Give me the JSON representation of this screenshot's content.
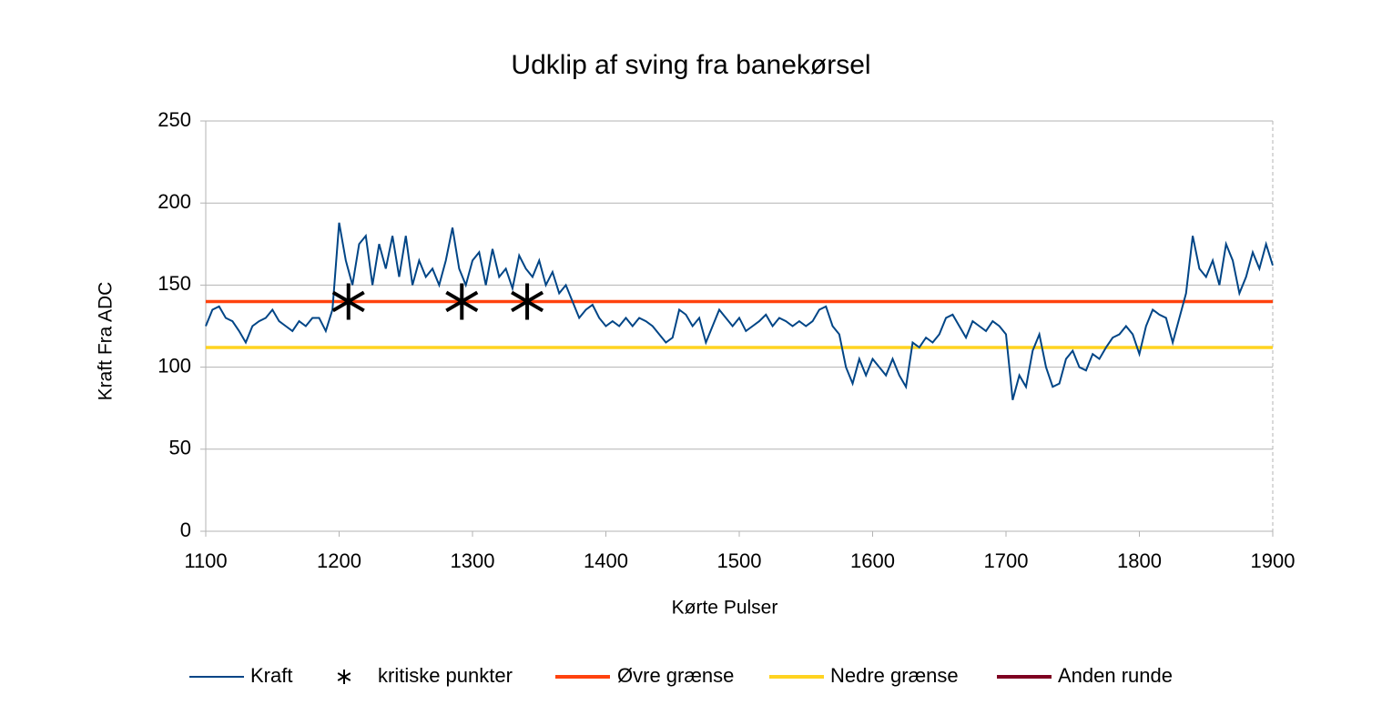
{
  "chart_data": {
    "type": "line",
    "title": "Udklip af sving fra banekørsel",
    "x_label": "Kørte Pulser",
    "y_label": "Kraft Fra ADC",
    "xlim": [
      1100,
      1900
    ],
    "xticks": [
      1100,
      1200,
      1300,
      1400,
      1500,
      1600,
      1700,
      1800,
      1900
    ],
    "ylim": [
      0,
      250
    ],
    "yticks": [
      0,
      50,
      100,
      150,
      200,
      250
    ],
    "grid": true,
    "legend": "bottom",
    "series": [
      {
        "name": "Kraft",
        "type": "line",
        "color": "#004586",
        "x": [
          1100,
          1105,
          1110,
          1115,
          1120,
          1125,
          1130,
          1135,
          1140,
          1145,
          1150,
          1155,
          1160,
          1165,
          1170,
          1175,
          1180,
          1185,
          1190,
          1195,
          1200,
          1205,
          1210,
          1215,
          1220,
          1225,
          1230,
          1235,
          1240,
          1245,
          1250,
          1255,
          1260,
          1265,
          1270,
          1275,
          1280,
          1285,
          1290,
          1295,
          1300,
          1305,
          1310,
          1315,
          1320,
          1325,
          1330,
          1335,
          1340,
          1345,
          1350,
          1355,
          1360,
          1365,
          1370,
          1375,
          1380,
          1385,
          1390,
          1395,
          1400,
          1405,
          1410,
          1415,
          1420,
          1425,
          1430,
          1435,
          1440,
          1445,
          1450,
          1455,
          1460,
          1465,
          1470,
          1475,
          1480,
          1485,
          1490,
          1495,
          1500,
          1505,
          1510,
          1515,
          1520,
          1525,
          1530,
          1535,
          1540,
          1545,
          1550,
          1555,
          1560,
          1565,
          1570,
          1575,
          1580,
          1585,
          1590,
          1595,
          1600,
          1605,
          1610,
          1615,
          1620,
          1625,
          1630,
          1635,
          1640,
          1645,
          1650,
          1655,
          1660,
          1665,
          1670,
          1675,
          1680,
          1685,
          1690,
          1695,
          1700,
          1705,
          1710,
          1715,
          1720,
          1725,
          1730,
          1735,
          1740,
          1745,
          1750,
          1755,
          1760,
          1765,
          1770,
          1775,
          1780,
          1785,
          1790,
          1795,
          1800,
          1805,
          1810,
          1815,
          1820,
          1825,
          1830,
          1835,
          1840,
          1845,
          1850,
          1855,
          1860,
          1865,
          1870,
          1875,
          1880,
          1885,
          1890,
          1895,
          1900
        ],
        "values": [
          125,
          135,
          137,
          130,
          128,
          122,
          115,
          125,
          128,
          130,
          135,
          128,
          125,
          122,
          128,
          125,
          130,
          130,
          122,
          135,
          188,
          165,
          150,
          175,
          180,
          150,
          175,
          160,
          180,
          155,
          180,
          150,
          165,
          155,
          160,
          150,
          165,
          185,
          160,
          150,
          165,
          170,
          150,
          172,
          155,
          160,
          148,
          168,
          160,
          155,
          165,
          150,
          158,
          145,
          150,
          140,
          130,
          135,
          138,
          130,
          125,
          128,
          125,
          130,
          125,
          130,
          128,
          125,
          120,
          115,
          118,
          135,
          132,
          125,
          130,
          115,
          125,
          135,
          130,
          125,
          130,
          122,
          125,
          128,
          132,
          125,
          130,
          128,
          125,
          128,
          125,
          128,
          135,
          137,
          125,
          120,
          100,
          90,
          105,
          95,
          105,
          100,
          95,
          105,
          95,
          88,
          115,
          112,
          118,
          115,
          120,
          130,
          132,
          125,
          118,
          128,
          125,
          122,
          128,
          125,
          120,
          80,
          95,
          88,
          110,
          120,
          100,
          88,
          90,
          105,
          110,
          100,
          98,
          108,
          105,
          112,
          118,
          120,
          125,
          120,
          108,
          125,
          135,
          132,
          130,
          115,
          130,
          145,
          180,
          160,
          155,
          165,
          150,
          175,
          165,
          145,
          155,
          170,
          160,
          175,
          162
        ]
      },
      {
        "name": "kritiske punkter",
        "type": "scatter",
        "color": "#000000",
        "x": [
          1207,
          1292,
          1341
        ],
        "values": [
          140,
          140,
          140
        ]
      },
      {
        "name": "Øvre grænse",
        "type": "line",
        "color": "#ff420e",
        "x": [
          1100,
          1900
        ],
        "values": [
          140,
          140
        ]
      },
      {
        "name": "Nedre grænse",
        "type": "line",
        "color": "#ffd320",
        "x": [
          1100,
          1900
        ],
        "values": [
          112,
          112
        ]
      },
      {
        "name": "Anden runde",
        "type": "line",
        "color": "#7e0021",
        "x": [],
        "values": []
      }
    ]
  }
}
